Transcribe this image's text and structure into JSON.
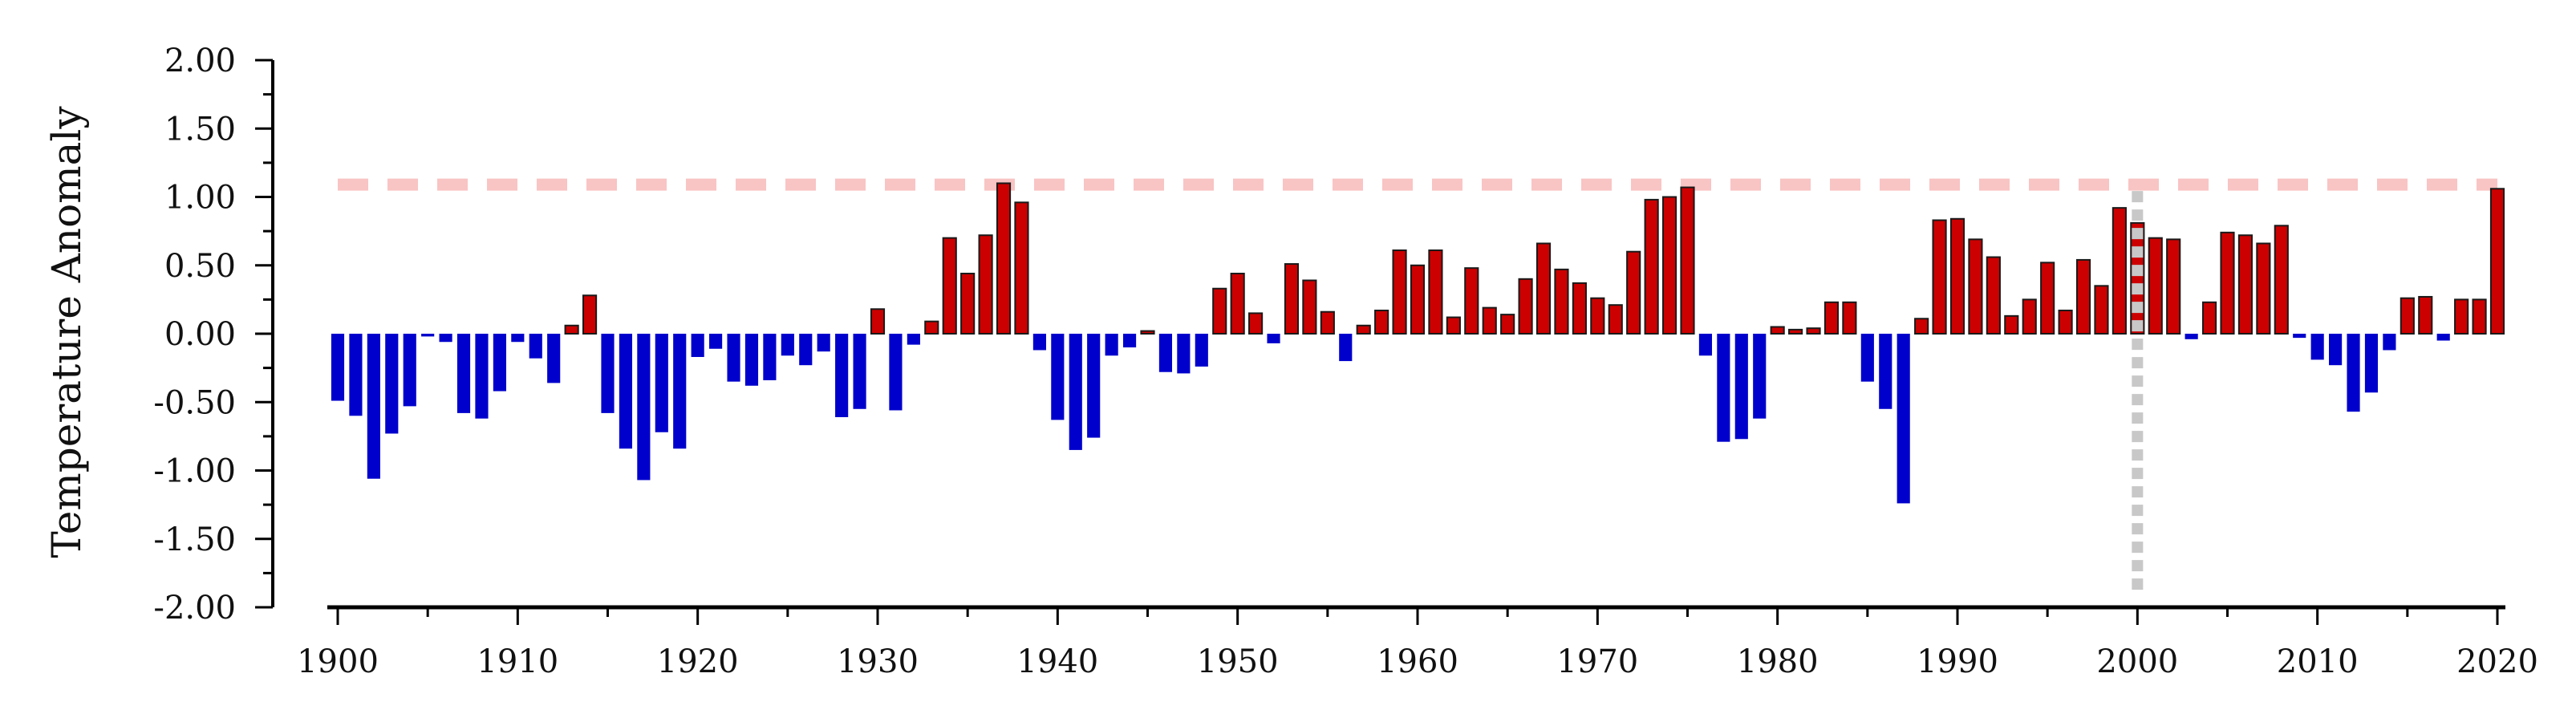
{
  "chart_data": {
    "type": "bar",
    "ylabel": "Temperature Anomaly",
    "xlabel": "",
    "ylim": [
      -2.0,
      2.0
    ],
    "xlim": [
      1900,
      2020
    ],
    "y_ticks": [
      "2.00",
      "1.50",
      "1.00",
      "0.50",
      "0.00",
      "-0.50",
      "-1.00",
      "-1.50",
      "-2.00"
    ],
    "x_ticks": [
      "1900",
      "1910",
      "1920",
      "1930",
      "1940",
      "1950",
      "1960",
      "1970",
      "1980",
      "1990",
      "2000",
      "2010",
      "2020"
    ],
    "grid": false,
    "colors": {
      "positive": "#cc0000",
      "negative": "#0000cc",
      "threshold_line": "#f9c4c4",
      "marker_line": "#c8c8c8",
      "axis": "#000000"
    },
    "threshold": {
      "value": 1.09,
      "style": "dashed"
    },
    "marker_year": {
      "value": 2000,
      "style": "dotted"
    },
    "x": [
      1900,
      1901,
      1902,
      1903,
      1904,
      1905,
      1906,
      1907,
      1908,
      1909,
      1910,
      1911,
      1912,
      1913,
      1914,
      1915,
      1916,
      1917,
      1918,
      1919,
      1920,
      1921,
      1922,
      1923,
      1924,
      1925,
      1926,
      1927,
      1928,
      1929,
      1930,
      1931,
      1932,
      1933,
      1934,
      1935,
      1936,
      1937,
      1938,
      1939,
      1940,
      1941,
      1942,
      1943,
      1944,
      1945,
      1946,
      1947,
      1948,
      1949,
      1950,
      1951,
      1952,
      1953,
      1954,
      1955,
      1956,
      1957,
      1958,
      1959,
      1960,
      1961,
      1962,
      1963,
      1964,
      1965,
      1966,
      1967,
      1968,
      1969,
      1970,
      1971,
      1972,
      1973,
      1974,
      1975,
      1976,
      1977,
      1978,
      1979,
      1980,
      1981,
      1982,
      1983,
      1984,
      1985,
      1986,
      1987,
      1988,
      1989,
      1990,
      1991,
      1992,
      1993,
      1994,
      1995,
      1996,
      1997,
      1998,
      1999,
      2000,
      2001,
      2002,
      2003,
      2004,
      2005,
      2006,
      2007,
      2008,
      2009,
      2010,
      2011,
      2012,
      2013,
      2014,
      2015,
      2016,
      2017,
      2018,
      2019,
      2020
    ],
    "values": [
      -0.49,
      -0.6,
      -1.06,
      -0.73,
      -0.53,
      -0.02,
      -0.06,
      -0.58,
      -0.62,
      -0.42,
      -0.06,
      -0.18,
      -0.36,
      0.06,
      0.28,
      -0.58,
      -0.84,
      -1.07,
      -0.72,
      -0.84,
      -0.17,
      -0.11,
      -0.35,
      -0.38,
      -0.34,
      -0.16,
      -0.23,
      -0.13,
      -0.61,
      -0.55,
      0.18,
      -0.56,
      -0.08,
      0.09,
      0.7,
      0.44,
      0.72,
      1.1,
      0.96,
      -0.12,
      -0.63,
      -0.85,
      -0.76,
      -0.16,
      -0.1,
      0.02,
      -0.28,
      -0.29,
      -0.24,
      0.33,
      0.44,
      0.15,
      -0.07,
      0.51,
      0.39,
      0.16,
      -0.2,
      0.06,
      0.17,
      0.61,
      0.5,
      0.61,
      0.12,
      0.48,
      0.19,
      0.14,
      0.4,
      0.66,
      0.47,
      0.37,
      0.26,
      0.21,
      0.6,
      0.98,
      1.0,
      1.07,
      -0.16,
      -0.79,
      -0.77,
      -0.62,
      0.05,
      0.03,
      0.04,
      0.23,
      0.23,
      -0.35,
      -0.55,
      -1.24,
      0.11,
      0.83,
      0.84,
      0.69,
      0.56,
      0.13,
      0.25,
      0.52,
      0.17,
      0.54,
      0.35,
      0.92,
      0.81,
      0.7,
      0.69,
      -0.04,
      0.23,
      0.74,
      0.72,
      0.66,
      0.79,
      -0.03,
      -0.19,
      -0.23,
      -0.57,
      -0.43,
      -0.12,
      0.26,
      0.27,
      -0.05,
      0.25,
      0.25,
      1.06
    ]
  }
}
